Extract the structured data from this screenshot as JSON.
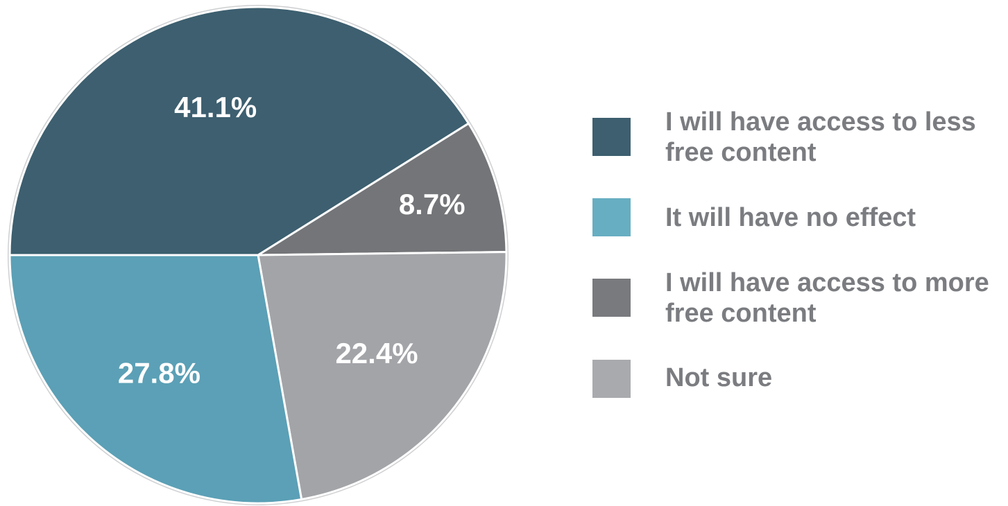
{
  "chart_data": {
    "type": "pie",
    "slices": [
      {
        "label": "I will have access to less free content",
        "value": 41.1,
        "value_label": "41.1%",
        "color": "#3d5f6f"
      },
      {
        "label": "I will have access to more free content",
        "value": 8.7,
        "value_label": "8.7%",
        "color": "#747578"
      },
      {
        "label": "Not sure",
        "value": 22.4,
        "value_label": "22.4%",
        "color": "#a3a4a8"
      },
      {
        "label": "It will have no effect",
        "value": 27.8,
        "value_label": "27.8%",
        "color": "#5ba0b6"
      }
    ],
    "start_angle_deg": 180,
    "direction": "clockwise",
    "legend_placement": "right",
    "legend": [
      {
        "label": "I will have access to less free content",
        "color": "#3d5f6f"
      },
      {
        "label": "It will have no effect",
        "color": "#67aec2"
      },
      {
        "label": "I will have access to more free content",
        "color": "#787a7d"
      },
      {
        "label": "Not sure",
        "color": "#a9aaad"
      }
    ]
  }
}
